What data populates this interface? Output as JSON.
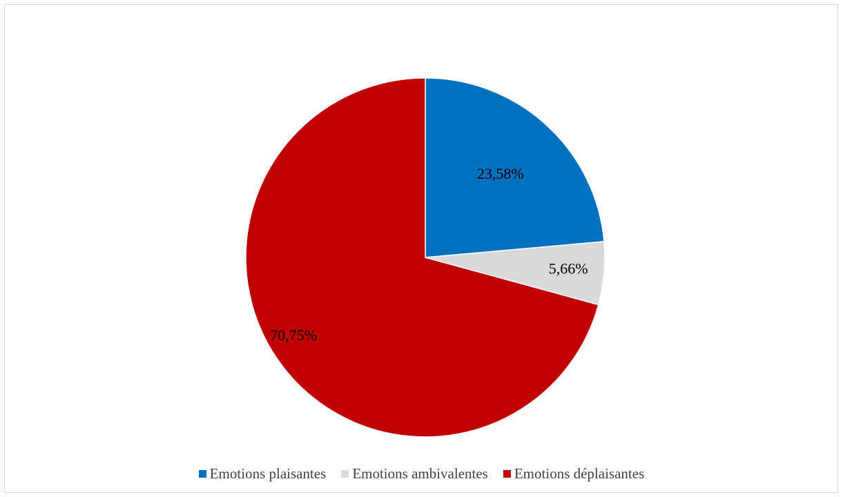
{
  "chart_data": {
    "type": "pie",
    "title": "",
    "slices": [
      {
        "name": "Emotions plaisantes",
        "value": 23.58,
        "label": "23,58%",
        "color": "#0070c0"
      },
      {
        "name": "Emotions ambivalentes",
        "value": 5.66,
        "label": "5,66%",
        "color": "#d9d9d9"
      },
      {
        "name": "Emotions déplaisantes",
        "value": 70.75,
        "label": "70,75%",
        "color": "#c00000"
      }
    ],
    "legend_position": "bottom",
    "start_angle_deg": 0,
    "direction": "clockwise"
  }
}
